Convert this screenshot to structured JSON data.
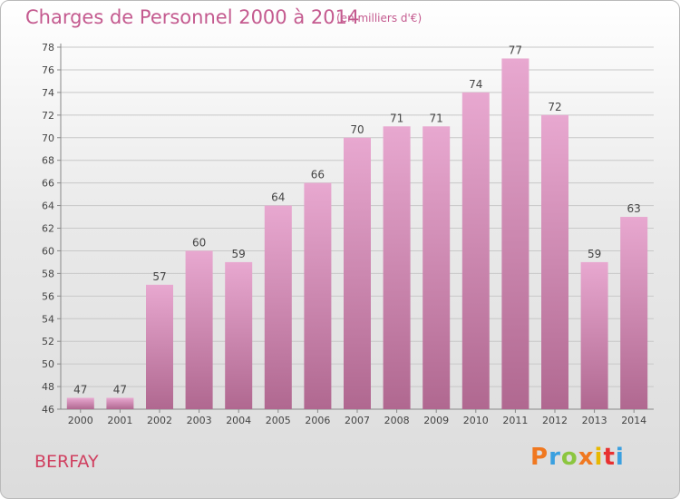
{
  "header": {
    "title": "Charges de Personnel 2000 à 2014",
    "unit": "(en milliers d'€)"
  },
  "footer": {
    "place": "BERFAY",
    "logo": "Proxiti",
    "logo_colors": [
      "#f07820",
      "#3aa0e0",
      "#8cc63f",
      "#f07820",
      "#e8b800",
      "#e83030",
      "#3aa0e0"
    ]
  },
  "colors": {
    "bar_top": "#e8a8d0",
    "bar_bottom": "#b06890",
    "axis": "#888888",
    "grid": "#c8c8c8",
    "label": "#444444"
  },
  "chart_data": {
    "type": "bar",
    "title": "Charges de Personnel 2000 à 2014",
    "subtitle": "(en milliers d'€)",
    "xlabel": "",
    "ylabel": "",
    "categories": [
      "2000",
      "2001",
      "2002",
      "2003",
      "2004",
      "2005",
      "2006",
      "2007",
      "2008",
      "2009",
      "2010",
      "2011",
      "2012",
      "2013",
      "2014"
    ],
    "values": [
      47,
      47,
      57,
      60,
      59,
      64,
      66,
      70,
      71,
      71,
      74,
      77,
      72,
      59,
      63
    ],
    "ylim": [
      46,
      78
    ],
    "yticks": [
      46,
      48,
      50,
      52,
      54,
      56,
      58,
      60,
      62,
      64,
      66,
      68,
      70,
      72,
      74,
      76,
      78
    ],
    "grid": true,
    "data_labels": true
  }
}
